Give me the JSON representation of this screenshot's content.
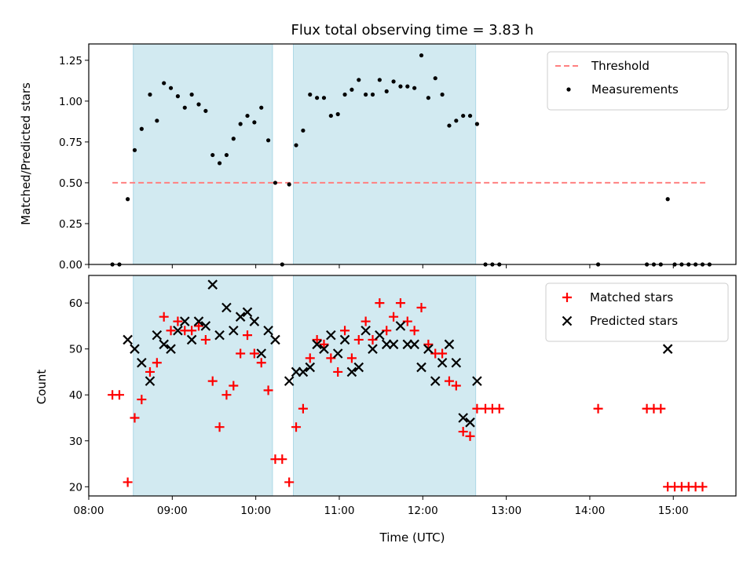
{
  "chart_data": [
    {
      "type": "scatter",
      "title": "Flux total observing time = 3.83 h",
      "xlabel": "",
      "ylabel": "Matched/Predicted stars",
      "ylim": [
        0,
        1.35
      ],
      "xlim": [
        "08:00",
        "15:45"
      ],
      "yticks": [
        "0.00",
        "0.25",
        "0.50",
        "0.75",
        "1.00",
        "1.25"
      ],
      "shaded_intervals": [
        [
          "08:32",
          "10:12"
        ],
        [
          "10:27",
          "12:38"
        ]
      ],
      "shade_color": "#add8e6",
      "threshold": {
        "name": "Threshold",
        "y": 0.5,
        "x_range": [
          "08:17",
          "15:23"
        ],
        "color": "#ff8080"
      },
      "series": [
        {
          "name": "Measurements",
          "color": "#000000",
          "marker": "dot",
          "points": [
            [
              "08:17",
              0.0
            ],
            [
              "08:22",
              0.0
            ],
            [
              "08:28",
              0.4
            ],
            [
              "08:33",
              0.7
            ],
            [
              "08:38",
              0.83
            ],
            [
              "08:44",
              1.04
            ],
            [
              "08:49",
              0.88
            ],
            [
              "08:54",
              1.11
            ],
            [
              "08:59",
              1.08
            ],
            [
              "09:04",
              1.03
            ],
            [
              "09:09",
              0.96
            ],
            [
              "09:14",
              1.04
            ],
            [
              "09:19",
              0.98
            ],
            [
              "09:24",
              0.94
            ],
            [
              "09:29",
              0.67
            ],
            [
              "09:34",
              0.62
            ],
            [
              "09:39",
              0.67
            ],
            [
              "09:44",
              0.77
            ],
            [
              "09:49",
              0.86
            ],
            [
              "09:54",
              0.91
            ],
            [
              "09:59",
              0.87
            ],
            [
              "10:04",
              0.96
            ],
            [
              "10:09",
              0.76
            ],
            [
              "10:14",
              0.5
            ],
            [
              "10:19",
              0.0
            ],
            [
              "10:24",
              0.49
            ],
            [
              "10:29",
              0.73
            ],
            [
              "10:34",
              0.82
            ],
            [
              "10:39",
              1.04
            ],
            [
              "10:44",
              1.02
            ],
            [
              "10:49",
              1.02
            ],
            [
              "10:54",
              0.91
            ],
            [
              "10:59",
              0.92
            ],
            [
              "11:04",
              1.04
            ],
            [
              "11:09",
              1.07
            ],
            [
              "11:14",
              1.13
            ],
            [
              "11:19",
              1.04
            ],
            [
              "11:24",
              1.04
            ],
            [
              "11:29",
              1.13
            ],
            [
              "11:34",
              1.06
            ],
            [
              "11:39",
              1.12
            ],
            [
              "11:44",
              1.09
            ],
            [
              "11:49",
              1.09
            ],
            [
              "11:54",
              1.08
            ],
            [
              "11:59",
              1.28
            ],
            [
              "12:04",
              1.02
            ],
            [
              "12:09",
              1.14
            ],
            [
              "12:14",
              1.04
            ],
            [
              "12:19",
              0.85
            ],
            [
              "12:24",
              0.88
            ],
            [
              "12:29",
              0.91
            ],
            [
              "12:34",
              0.91
            ],
            [
              "12:39",
              0.86
            ],
            [
              "12:45",
              0.0
            ],
            [
              "12:50",
              0.0
            ],
            [
              "12:55",
              0.0
            ],
            [
              "14:06",
              0.0
            ],
            [
              "14:41",
              0.0
            ],
            [
              "14:46",
              0.0
            ],
            [
              "14:51",
              0.0
            ],
            [
              "14:56",
              0.4
            ],
            [
              "15:01",
              0.0
            ],
            [
              "15:06",
              0.0
            ],
            [
              "15:11",
              0.0
            ],
            [
              "15:16",
              0.0
            ],
            [
              "15:21",
              0.0
            ],
            [
              "15:26",
              0.0
            ]
          ]
        }
      ],
      "legend": "top-right"
    },
    {
      "type": "scatter",
      "title": "",
      "xlabel": "Time (UTC)",
      "ylabel": "Count",
      "ylim": [
        18,
        66
      ],
      "xlim": [
        "08:00",
        "15:45"
      ],
      "xticks": [
        "08:00",
        "09:00",
        "10:00",
        "11:00",
        "12:00",
        "13:00",
        "14:00",
        "15:00"
      ],
      "yticks": [
        "20",
        "30",
        "40",
        "50",
        "60"
      ],
      "shaded_intervals": [
        [
          "08:32",
          "10:12"
        ],
        [
          "10:27",
          "12:38"
        ]
      ],
      "shade_color": "#add8e6",
      "series": [
        {
          "name": "Matched stars",
          "color": "#ff0000",
          "marker": "plus",
          "points": [
            [
              "08:17",
              40
            ],
            [
              "08:22",
              40
            ],
            [
              "08:28",
              21
            ],
            [
              "08:33",
              35
            ],
            [
              "08:38",
              39
            ],
            [
              "08:44",
              45
            ],
            [
              "08:49",
              47
            ],
            [
              "08:54",
              57
            ],
            [
              "08:59",
              54
            ],
            [
              "09:04",
              56
            ],
            [
              "09:09",
              54
            ],
            [
              "09:14",
              54
            ],
            [
              "09:19",
              55
            ],
            [
              "09:24",
              52
            ],
            [
              "09:29",
              43
            ],
            [
              "09:34",
              33
            ],
            [
              "09:39",
              40
            ],
            [
              "09:44",
              42
            ],
            [
              "09:49",
              49
            ],
            [
              "09:54",
              53
            ],
            [
              "09:59",
              49
            ],
            [
              "10:04",
              47
            ],
            [
              "10:09",
              41
            ],
            [
              "10:14",
              26
            ],
            [
              "10:19",
              26
            ],
            [
              "10:24",
              21
            ],
            [
              "10:29",
              33
            ],
            [
              "10:34",
              37
            ],
            [
              "10:39",
              48
            ],
            [
              "10:44",
              52
            ],
            [
              "10:49",
              51
            ],
            [
              "10:54",
              48
            ],
            [
              "10:59",
              45
            ],
            [
              "11:04",
              54
            ],
            [
              "11:09",
              48
            ],
            [
              "11:14",
              52
            ],
            [
              "11:19",
              56
            ],
            [
              "11:24",
              52
            ],
            [
              "11:29",
              60
            ],
            [
              "11:34",
              54
            ],
            [
              "11:39",
              57
            ],
            [
              "11:44",
              60
            ],
            [
              "11:49",
              56
            ],
            [
              "11:54",
              54
            ],
            [
              "11:59",
              59
            ],
            [
              "12:04",
              51
            ],
            [
              "12:09",
              49
            ],
            [
              "12:14",
              49
            ],
            [
              "12:19",
              43
            ],
            [
              "12:24",
              42
            ],
            [
              "12:29",
              32
            ],
            [
              "12:34",
              31
            ],
            [
              "12:39",
              37
            ],
            [
              "12:45",
              37
            ],
            [
              "12:50",
              37
            ],
            [
              "12:55",
              37
            ],
            [
              "14:06",
              37
            ],
            [
              "14:41",
              37
            ],
            [
              "14:46",
              37
            ],
            [
              "14:51",
              37
            ],
            [
              "14:56",
              20
            ],
            [
              "15:01",
              20
            ],
            [
              "15:06",
              20
            ],
            [
              "15:11",
              20
            ],
            [
              "15:16",
              20
            ],
            [
              "15:21",
              20
            ]
          ]
        },
        {
          "name": "Predicted stars",
          "color": "#000000",
          "marker": "x",
          "points": [
            [
              "08:28",
              52
            ],
            [
              "08:33",
              50
            ],
            [
              "08:38",
              47
            ],
            [
              "08:44",
              43
            ],
            [
              "08:49",
              53
            ],
            [
              "08:54",
              51
            ],
            [
              "08:59",
              50
            ],
            [
              "09:04",
              54
            ],
            [
              "09:09",
              56
            ],
            [
              "09:14",
              52
            ],
            [
              "09:19",
              56
            ],
            [
              "09:24",
              55
            ],
            [
              "09:29",
              64
            ],
            [
              "09:34",
              53
            ],
            [
              "09:39",
              59
            ],
            [
              "09:44",
              54
            ],
            [
              "09:49",
              57
            ],
            [
              "09:54",
              58
            ],
            [
              "09:59",
              56
            ],
            [
              "10:04",
              49
            ],
            [
              "10:09",
              54
            ],
            [
              "10:14",
              52
            ],
            [
              "10:24",
              43
            ],
            [
              "10:29",
              45
            ],
            [
              "10:34",
              45
            ],
            [
              "10:39",
              46
            ],
            [
              "10:44",
              51
            ],
            [
              "10:49",
              50
            ],
            [
              "10:54",
              53
            ],
            [
              "10:59",
              49
            ],
            [
              "11:04",
              52
            ],
            [
              "11:09",
              45
            ],
            [
              "11:14",
              46
            ],
            [
              "11:19",
              54
            ],
            [
              "11:24",
              50
            ],
            [
              "11:29",
              53
            ],
            [
              "11:34",
              51
            ],
            [
              "11:39",
              51
            ],
            [
              "11:44",
              55
            ],
            [
              "11:49",
              51
            ],
            [
              "11:54",
              51
            ],
            [
              "11:59",
              46
            ],
            [
              "12:04",
              50
            ],
            [
              "12:09",
              43
            ],
            [
              "12:14",
              47
            ],
            [
              "12:19",
              51
            ],
            [
              "12:24",
              47
            ],
            [
              "12:29",
              35
            ],
            [
              "12:34",
              34
            ],
            [
              "12:39",
              43
            ],
            [
              "14:56",
              50
            ]
          ]
        }
      ],
      "legend": "top-right"
    }
  ]
}
